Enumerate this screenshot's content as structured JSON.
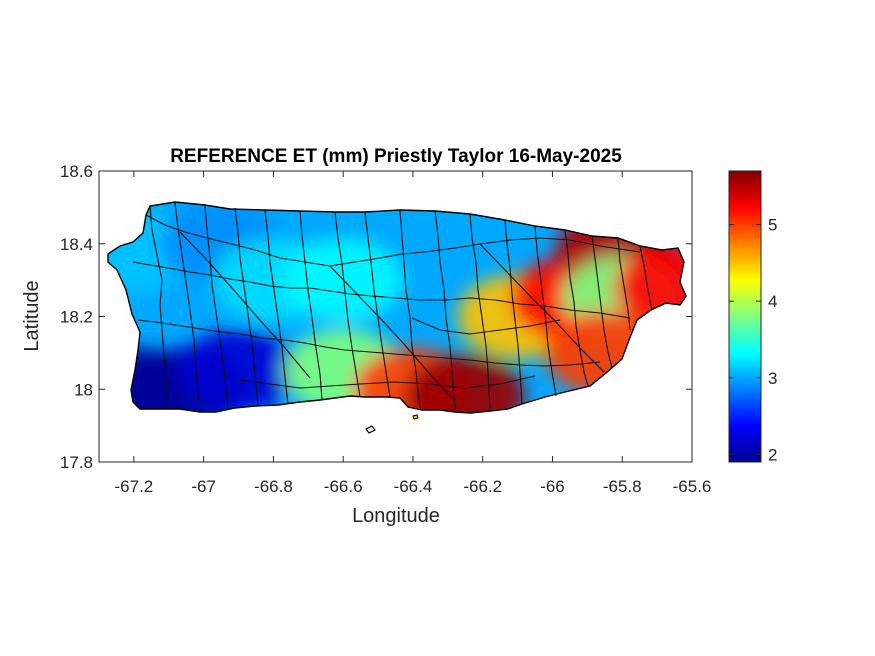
{
  "title": "REFERENCE ET (mm) Priestly Taylor 16-May-2025",
  "xlabel": "Longitude",
  "ylabel": "Latitude",
  "map": {
    "region_extent": {
      "lon": [
        -67.3,
        -65.6
      ],
      "lat": [
        17.8,
        18.6
      ]
    },
    "xticks": [
      -67.2,
      -67,
      -66.8,
      -66.6,
      -66.4,
      -66.2,
      -66,
      -65.8,
      -65.6
    ],
    "xtick_labels": [
      "-67.2",
      "-67",
      "-66.8",
      "-66.6",
      "-66.4",
      "-66.2",
      "-66",
      "-65.8",
      "-65.6"
    ],
    "yticks": [
      17.8,
      18,
      18.2,
      18.4,
      18.6
    ],
    "ytick_labels": [
      "17.8",
      "18",
      "18.2",
      "18.4",
      "18.6"
    ],
    "colormap": "jet",
    "colorbar": {
      "range": [
        1.9,
        5.7
      ],
      "ticks": [
        2,
        3,
        4,
        5
      ],
      "tick_labels": [
        "2",
        "3",
        "4",
        "5"
      ]
    },
    "outline_color": "#000000",
    "value_pattern": [
      {
        "lon": -67.2,
        "lat": 18.0,
        "value": 1.95
      },
      {
        "lon": -67.05,
        "lat": 18.0,
        "value": 2.0
      },
      {
        "lon": -66.9,
        "lat": 18.05,
        "value": 2.2
      },
      {
        "lon": -67.2,
        "lat": 18.38,
        "value": 3.1
      },
      {
        "lon": -66.95,
        "lat": 18.4,
        "value": 2.9
      },
      {
        "lon": -66.8,
        "lat": 18.3,
        "value": 3.2
      },
      {
        "lon": -66.6,
        "lat": 18.3,
        "value": 3.3
      },
      {
        "lon": -66.6,
        "lat": 18.05,
        "value": 3.8
      },
      {
        "lon": -66.4,
        "lat": 18.0,
        "value": 5.0
      },
      {
        "lon": -66.25,
        "lat": 17.98,
        "value": 5.6
      },
      {
        "lon": -66.1,
        "lat": 18.2,
        "value": 4.5
      },
      {
        "lon": -65.95,
        "lat": 18.25,
        "value": 5.2
      },
      {
        "lon": -65.82,
        "lat": 18.38,
        "value": 5.5
      },
      {
        "lon": -65.8,
        "lat": 18.25,
        "value": 3.8
      },
      {
        "lon": -65.85,
        "lat": 18.1,
        "value": 5.0
      },
      {
        "lon": -65.65,
        "lat": 18.28,
        "value": 5.2
      }
    ]
  }
}
